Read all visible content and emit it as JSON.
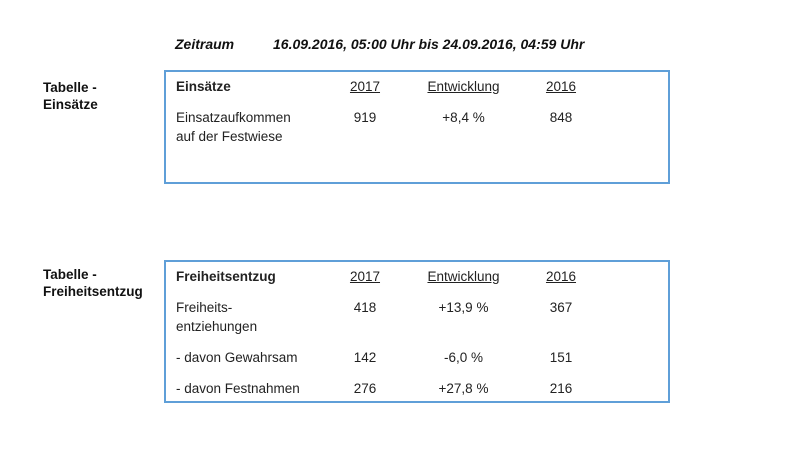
{
  "colors": {
    "table_border": "#5f9fd8",
    "text": "#1a1a1a"
  },
  "header": {
    "label": "Zeitraum",
    "value": "16.09.2016, 05:00 Uhr bis 24.09.2016, 04:59 Uhr"
  },
  "sections": [
    {
      "side_label": "Tabelle -\nEinsätze"
    },
    {
      "side_label": "Tabelle -\nFreiheitsentzug"
    }
  ],
  "tables": [
    {
      "title": "Einsätze",
      "columns": [
        "Einsätze",
        "2017",
        "Entwicklung",
        "2016"
      ],
      "rows": [
        {
          "cells": [
            "Einsatzaufkommen\nauf der Festwiese",
            "919",
            "+8,4 %",
            "848"
          ]
        }
      ]
    },
    {
      "title": "Freiheitsentzug",
      "columns": [
        "Freiheitsentzug",
        "2017",
        "Entwicklung",
        "2016"
      ],
      "rows": [
        {
          "cells": [
            "Freiheits-\nentziehungen",
            "418",
            "+13,9 %",
            "367"
          ]
        },
        {
          "cells": [
            "- davon Gewahrsam",
            "142",
            "-6,0 %",
            "151"
          ]
        },
        {
          "cells": [
            "- davon Festnahmen",
            "276",
            "+27,8 %",
            "216"
          ]
        }
      ]
    }
  ]
}
